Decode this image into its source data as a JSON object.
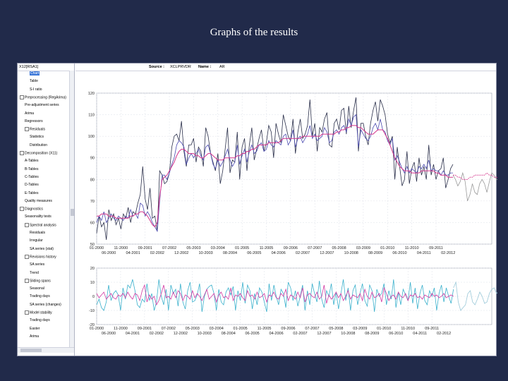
{
  "slide": {
    "title": "Graphs of the results"
  },
  "window": {
    "tree_title": "X12[RSA1]",
    "source_label": "Source :",
    "source_value": "XCLPRVDR",
    "name_label": "Name :",
    "name_value": "AR",
    "footer": "- - -"
  },
  "tree": [
    {
      "label": "Chart",
      "level": 2,
      "selected": true
    },
    {
      "label": "Table",
      "level": 2
    },
    {
      "label": "S-I ratio",
      "level": 2
    },
    {
      "label": "Preprocessing (RegArima)",
      "level": 0,
      "expand": "-"
    },
    {
      "label": "Pre-adjustment series",
      "level": 1
    },
    {
      "label": "Arima",
      "level": 1
    },
    {
      "label": "Regressors",
      "level": 1
    },
    {
      "label": "Residuals",
      "level": 1,
      "expand": "-"
    },
    {
      "label": "Statistics",
      "level": 2
    },
    {
      "label": "Distribution",
      "level": 2
    },
    {
      "label": "Decomposition (X11)",
      "level": 0,
      "expand": "-"
    },
    {
      "label": "A-Tables",
      "level": 1
    },
    {
      "label": "B-Tables",
      "level": 1
    },
    {
      "label": "C-Tables",
      "level": 1
    },
    {
      "label": "D-Tables",
      "level": 1
    },
    {
      "label": "E-Tables",
      "level": 1
    },
    {
      "label": "Quality measures",
      "level": 1
    },
    {
      "label": "Diagnostics",
      "level": 0,
      "expand": "-"
    },
    {
      "label": "Seasonality tests",
      "level": 1
    },
    {
      "label": "Spectral analysis",
      "level": 1,
      "expand": "-"
    },
    {
      "label": "Residuals",
      "level": 2
    },
    {
      "label": "Irregular",
      "level": 2
    },
    {
      "label": "SA series (stat)",
      "level": 2
    },
    {
      "label": "Revisions history",
      "level": 1,
      "expand": "-"
    },
    {
      "label": "SA series",
      "level": 2
    },
    {
      "label": "Trend",
      "level": 2
    },
    {
      "label": "Sliding spans",
      "level": 1,
      "expand": "-"
    },
    {
      "label": "Seasonal",
      "level": 2
    },
    {
      "label": "Trading days",
      "level": 2
    },
    {
      "label": "SA series (changes)",
      "level": 2
    },
    {
      "label": "Model stability",
      "level": 1,
      "expand": "-"
    },
    {
      "label": "Trading days",
      "level": 2
    },
    {
      "label": "Easter",
      "level": 2
    },
    {
      "label": "Arima",
      "level": 2
    }
  ],
  "chart_data": [
    {
      "type": "line",
      "title": "",
      "ylim": [
        50,
        120
      ],
      "yticks": [
        50,
        60,
        70,
        80,
        90,
        100,
        110,
        120
      ],
      "x_tick_labels_top": [
        "01-2000",
        "11-2000",
        "09-2001",
        "07-2002",
        "05-2003",
        "03-2004",
        "01-2005",
        "11-2005",
        "09-2006",
        "07-2007",
        "05-2008",
        "03-2009",
        "01-2010",
        "11-2010",
        "09-2011"
      ],
      "x_tick_labels_bottom": [
        "06-2000",
        "04-2001",
        "02-2002",
        "12-2002",
        "10-2003",
        "08-2004",
        "06-2005",
        "04-2006",
        "02-2007",
        "12-2007",
        "10-2008",
        "08-2009",
        "06-2010",
        "04-2011",
        "02-2012"
      ],
      "grid": true,
      "colors": {
        "series": "#2a2f4a",
        "seasonally_adjusted": "#4a4ab0",
        "trend": "#d4338a",
        "forecast": "#9a9a9a"
      },
      "series": [
        {
          "key": "series",
          "values": [
            55,
            63,
            58,
            60,
            52,
            66,
            61,
            64,
            59,
            62,
            57,
            64,
            62,
            67,
            60,
            65,
            64,
            69,
            73,
            86,
            71,
            66,
            76,
            62,
            63,
            56,
            84,
            82,
            78,
            79,
            83,
            95,
            100,
            101,
            98,
            107,
            93,
            86,
            96,
            96,
            99,
            88,
            95,
            93,
            86,
            104,
            100,
            92,
            88,
            84,
            92,
            78,
            84,
            94,
            104,
            83,
            89,
            88,
            102,
            80,
            95,
            99,
            84,
            96,
            104,
            89,
            94,
            99,
            103,
            93,
            97,
            105,
            102,
            90,
            106,
            101,
            97,
            110,
            105,
            100,
            98,
            108,
            92,
            102,
            108,
            99,
            101,
            105,
            117,
            100,
            106,
            93,
            104,
            102,
            108,
            111,
            96,
            95,
            106,
            108,
            103,
            112,
            113,
            101,
            114,
            104,
            112,
            118,
            93,
            106,
            106,
            100,
            96,
            106,
            112,
            116,
            107,
            117,
            114,
            110,
            101,
            97,
            100,
            80,
            95,
            86,
            77,
            80,
            93,
            78,
            85,
            88,
            79,
            90,
            82,
            86,
            80,
            96,
            82,
            87,
            80,
            84,
            85,
            90,
            76,
            80,
            85,
            87
          ]
        },
        {
          "key": "seasonally_adjusted",
          "values": [
            60,
            63,
            61,
            65,
            60,
            62,
            64,
            62,
            61,
            63,
            62,
            61,
            63,
            62,
            66,
            63,
            64,
            62,
            69,
            68,
            63,
            65,
            63,
            60,
            58,
            56,
            70,
            82,
            82,
            80,
            83,
            87,
            90,
            96,
            98,
            97,
            95,
            87,
            90,
            92,
            90,
            92,
            94,
            91,
            89,
            95,
            96,
            92,
            87,
            85,
            89,
            86,
            88,
            91,
            94,
            89,
            86,
            88,
            96,
            87,
            91,
            94,
            88,
            93,
            96,
            92,
            93,
            96,
            97,
            93,
            94,
            98,
            96,
            95,
            98,
            97,
            96,
            100,
            101,
            96,
            98,
            103,
            95,
            99,
            100,
            97,
            99,
            101,
            105,
            99,
            101,
            98,
            99,
            100,
            104,
            102,
            97,
            98,
            102,
            103,
            101,
            104,
            105,
            102,
            108,
            105,
            109,
            110,
            95,
            103,
            101,
            99,
            98,
            100,
            104,
            106,
            103,
            108,
            103,
            102,
            98,
            96,
            99,
            89,
            91,
            88,
            85,
            83,
            86,
            83,
            85,
            84,
            83,
            86,
            85,
            87,
            85,
            89,
            84,
            85,
            84,
            84,
            82,
            84,
            82,
            82,
            83,
            83
          ]
        },
        {
          "key": "trend",
          "values": [
            63,
            63,
            64,
            64,
            64,
            63,
            63,
            63,
            62,
            62,
            62,
            62,
            62,
            62,
            63,
            63,
            64,
            64,
            65,
            65,
            64,
            63,
            61,
            59,
            58,
            60,
            72,
            80,
            81,
            82,
            84,
            86,
            88,
            91,
            93,
            94,
            94,
            93,
            92,
            92,
            92,
            91,
            91,
            90,
            90,
            91,
            92,
            92,
            91,
            90,
            89,
            89,
            89,
            90,
            90,
            90,
            90,
            90,
            91,
            91,
            92,
            92,
            93,
            93,
            94,
            94,
            95,
            96,
            96,
            96,
            96,
            97,
            97,
            97,
            97,
            97,
            98,
            99,
            99,
            99,
            99,
            99,
            99,
            99,
            99,
            100,
            100,
            100,
            100,
            100,
            100,
            100,
            100,
            101,
            101,
            101,
            101,
            101,
            101,
            102,
            102,
            103,
            103,
            104,
            104,
            105,
            105,
            105,
            104,
            104,
            103,
            102,
            101,
            101,
            101,
            102,
            103,
            103,
            103,
            101,
            99,
            96,
            93,
            90,
            88,
            86,
            85,
            84,
            84,
            84,
            83,
            83,
            83,
            83,
            84,
            84,
            84,
            84,
            84,
            84,
            83,
            83,
            82,
            82,
            82,
            81,
            81,
            81
          ]
        },
        {
          "key": "forecast",
          "values": [
            82,
            80,
            77,
            79,
            83,
            79,
            70,
            73,
            78,
            74,
            73,
            78,
            80,
            78,
            74,
            79,
            83,
            82,
            80,
            80,
            85,
            84,
            88
          ]
        },
        {
          "key": "forecast_trend",
          "values": [
            82,
            82,
            81,
            81,
            80,
            80,
            80,
            81,
            81,
            82,
            82,
            82,
            82,
            82,
            83,
            82,
            82,
            81,
            81,
            80,
            80,
            80,
            79
          ]
        }
      ]
    },
    {
      "type": "line",
      "title": "",
      "ylim": [
        -20,
        20
      ],
      "yticks": [
        -20,
        -10,
        0,
        10,
        20
      ],
      "x_tick_labels_top": [
        "01-2000",
        "11-2000",
        "09-2001",
        "07-2002",
        "05-2003",
        "03-2004",
        "01-2005",
        "11-2005",
        "09-2006",
        "07-2007",
        "05-2008",
        "03-2009",
        "01-2010",
        "11-2010",
        "09-2011"
      ],
      "x_tick_labels_bottom": [
        "06-2000",
        "04-2001",
        "02-2002",
        "12-2002",
        "10-2003",
        "08-2004",
        "06-2005",
        "04-2006",
        "02-2007",
        "12-2007",
        "10-2008",
        "08-2009",
        "06-2010",
        "04-2011",
        "02-2012"
      ],
      "grid": true,
      "colors": {
        "seasonal": "#3ab0cc",
        "irregular": "#d13aa3",
        "forecast": "#9ac8d8"
      },
      "series": [
        {
          "key": "seasonal",
          "values": [
            -6,
            -2,
            -8,
            -10,
            -4,
            8,
            -3,
            2,
            4,
            1,
            -10,
            6,
            -2,
            8,
            6,
            12,
            4,
            -6,
            -8,
            -2,
            -4,
            9,
            -3,
            2,
            -10,
            -4,
            12,
            0,
            -6,
            5,
            -10,
            8,
            2,
            5,
            -7,
            9,
            -4,
            -9,
            4,
            10,
            -4,
            -3,
            1,
            9,
            -11,
            0,
            5,
            7,
            8,
            2,
            -10,
            5,
            -4,
            -6,
            3,
            6,
            1,
            7,
            -10,
            4,
            -3,
            10,
            -5,
            8,
            4,
            -9,
            2,
            -6,
            6,
            3,
            -4,
            -11,
            9,
            -3,
            8,
            0,
            -6,
            5,
            2,
            -8,
            10,
            6,
            -3,
            4,
            -7,
            0,
            8,
            -10,
            4,
            -6,
            9,
            2,
            -4,
            11,
            -2,
            -8,
            4,
            0,
            9,
            -6,
            3,
            -9,
            2,
            12,
            -3,
            6,
            -10,
            4,
            8,
            -6,
            2,
            9,
            -3,
            -7,
            8,
            4,
            -11,
            5,
            0,
            2,
            9,
            -6,
            4,
            -2,
            12,
            -8,
            3,
            -6,
            5,
            1,
            -3,
            10,
            -5,
            6,
            -9,
            2,
            8,
            -3,
            -6,
            4,
            0,
            6,
            -10,
            2,
            8,
            -4,
            6,
            0,
            -5,
            5
          ]
        },
        {
          "key": "irregular",
          "values": [
            2,
            -1,
            1,
            3,
            -2,
            0,
            2,
            -1,
            -2,
            1,
            0,
            2,
            -1,
            3,
            0,
            -2,
            2,
            1,
            -3,
            4,
            8,
            -4,
            1,
            -2,
            0,
            -6,
            -3,
            2,
            8,
            -1,
            0,
            -2,
            3,
            -1,
            4,
            2,
            -3,
            1,
            0,
            -2,
            4,
            -1,
            2,
            0,
            -3,
            1,
            5,
            -2,
            0,
            2,
            -4,
            1,
            3,
            -1,
            0,
            -2,
            6,
            -3,
            1,
            0,
            2,
            -1,
            -3,
            4,
            0,
            1,
            -2,
            3,
            -1,
            0,
            2,
            -4,
            1,
            0,
            3,
            -1,
            -2,
            2,
            0,
            5,
            -3,
            1,
            0,
            -2,
            3,
            -1,
            6,
            -4,
            1,
            2,
            0,
            -1,
            3,
            -2,
            0,
            8,
            -5,
            1,
            -2,
            0,
            3,
            -1,
            2,
            -3,
            0,
            4,
            -2,
            1,
            0,
            -1,
            2,
            -3,
            5,
            0,
            -2,
            3,
            -1,
            0,
            2,
            -4,
            6,
            2,
            -3,
            0,
            1,
            -2,
            3,
            0,
            -1,
            2,
            -3,
            1,
            0,
            2,
            -1,
            0,
            -2,
            1,
            0,
            -1,
            2,
            0,
            1,
            -1,
            0,
            2,
            -1,
            0,
            1,
            0
          ]
        },
        {
          "key": "seasonal_forecast",
          "values": [
            6,
            10,
            -4,
            -10,
            -8,
            -6,
            2,
            4,
            -4,
            -6,
            -2,
            3,
            0,
            -5,
            -4,
            2,
            5,
            6,
            2,
            4,
            6,
            8,
            9
          ]
        }
      ]
    }
  ]
}
